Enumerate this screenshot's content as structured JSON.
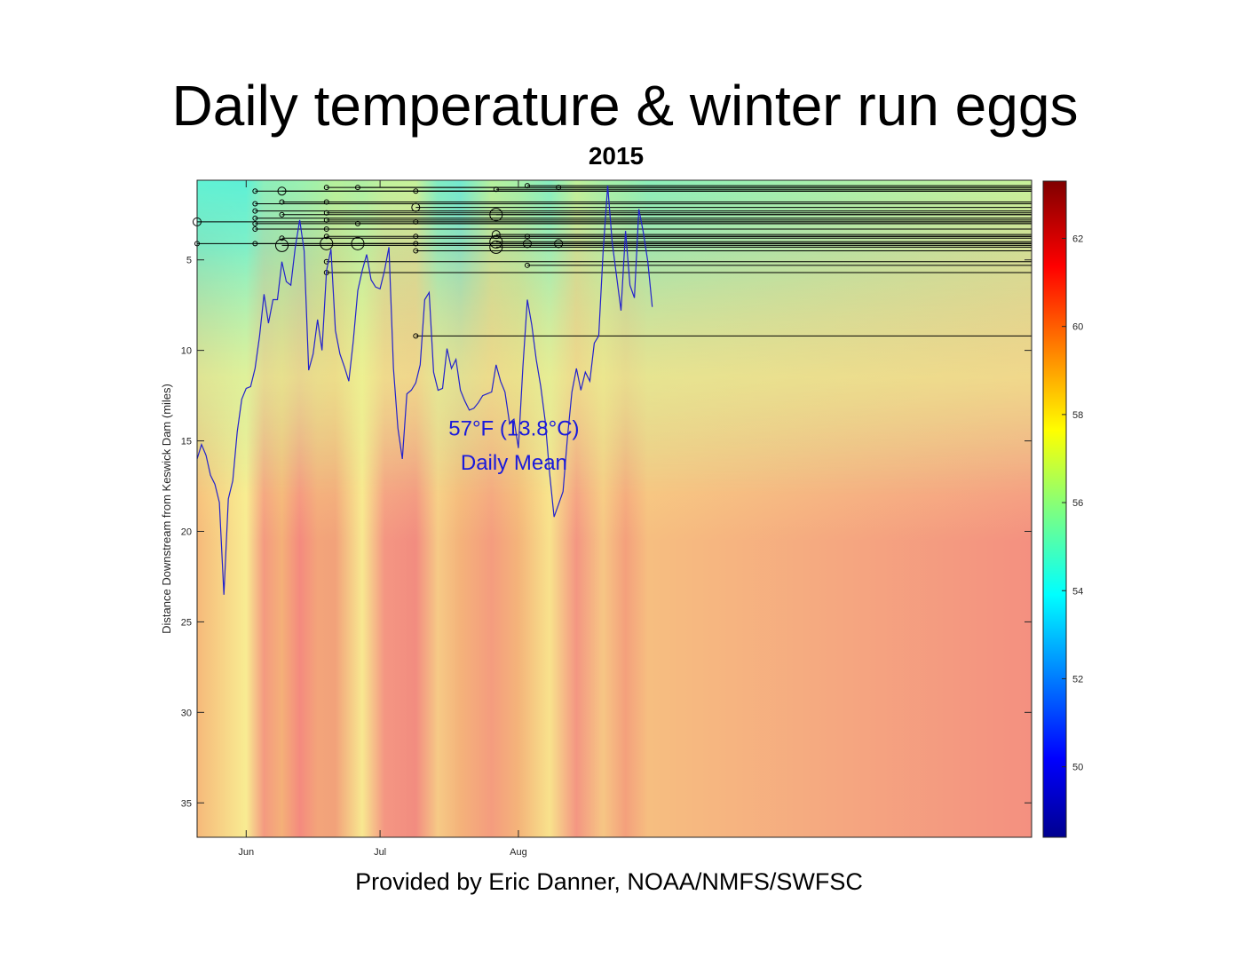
{
  "title": "Daily temperature & winter run eggs",
  "subtitle": "2015",
  "credit": "Provided by Eric Danner, NOAA/NMFS/SWFSC",
  "chart_data": {
    "type": "heatmap",
    "xlabel": "",
    "ylabel": "Distance Downstream from Keswick Dam (miles)",
    "x_range_days": [
      -11,
      176
    ],
    "x_ticks": [
      {
        "day": 0,
        "label": "Jun"
      },
      {
        "day": 30,
        "label": "Jul"
      },
      {
        "day": 61,
        "label": "Aug"
      }
    ],
    "y_range": [
      0.6,
      36.9
    ],
    "y_reversed": true,
    "y_ticks": [
      5,
      10,
      15,
      20,
      25,
      30,
      35
    ],
    "colorbar": {
      "min": 48.4,
      "max": 63.3,
      "ticks": [
        50,
        52,
        54,
        56,
        58,
        60,
        62
      ],
      "colormap": "jet"
    },
    "heatmap_bands": [
      {
        "day": -11,
        "top_color": "#60f2d4",
        "bottom_color": "#f6b97a"
      },
      {
        "day": 0,
        "top_color": "#5df0d6",
        "bottom_color": "#f8ec92"
      },
      {
        "day": 4,
        "top_color": "#8cf0bc",
        "bottom_color": "#f49a80"
      },
      {
        "day": 8,
        "top_color": "#92f0b6",
        "bottom_color": "#f4b078"
      },
      {
        "day": 12,
        "top_color": "#9af2b2",
        "bottom_color": "#f48a7e"
      },
      {
        "day": 16,
        "top_color": "#a4f2a8",
        "bottom_color": "#f3a47a"
      },
      {
        "day": 20,
        "top_color": "#b6f29c",
        "bottom_color": "#f2a27a"
      },
      {
        "day": 26,
        "top_color": "#aef0a4",
        "bottom_color": "#f8e890"
      },
      {
        "day": 31,
        "top_color": "#c2f29c",
        "bottom_color": "#f49682"
      },
      {
        "day": 38,
        "top_color": "#c8f29a",
        "bottom_color": "#f28c80"
      },
      {
        "day": 43,
        "top_color": "#80ecc4",
        "bottom_color": "#f6ca86"
      },
      {
        "day": 48,
        "top_color": "#72ead0",
        "bottom_color": "#f4b27a"
      },
      {
        "day": 55,
        "top_color": "#b6f29e",
        "bottom_color": "#f49c7e"
      },
      {
        "day": 61,
        "top_color": "#a6f0a8",
        "bottom_color": "#f4b47a"
      },
      {
        "day": 68,
        "top_color": "#86eec0",
        "bottom_color": "#f8e28c"
      },
      {
        "day": 74,
        "top_color": "#c0f29a",
        "bottom_color": "#f49682"
      },
      {
        "day": 80,
        "top_color": "#a8f0a8",
        "bottom_color": "#f6c684"
      },
      {
        "day": 85,
        "top_color": "#9cf0ae",
        "bottom_color": "#f4a07c"
      },
      {
        "day": 90,
        "top_color": "#8cefba",
        "bottom_color": "#f6be80"
      },
      {
        "day": 176,
        "top_color": "#c8f29a",
        "bottom_color": "#f49080"
      }
    ],
    "series": [
      {
        "type": "line",
        "color": "#2222cc",
        "x": [
          -11,
          -10,
          -9,
          -8,
          -7,
          -6,
          -5,
          -4,
          -3,
          -2,
          -1,
          0,
          1,
          2,
          3,
          4,
          5,
          6,
          7,
          8,
          9,
          10,
          11,
          12,
          13,
          14,
          15,
          16,
          17,
          18,
          19,
          20,
          21,
          22,
          23,
          24,
          25,
          26,
          27,
          28,
          29,
          30,
          31,
          32,
          33,
          34,
          35,
          36,
          37,
          38,
          39,
          40,
          41,
          42,
          43,
          44,
          45,
          46,
          47,
          48,
          49,
          50,
          51,
          52,
          53,
          54,
          55,
          56,
          57,
          58,
          59,
          60,
          61,
          62,
          63,
          64,
          65,
          66,
          67,
          68,
          69,
          70,
          71,
          72,
          73,
          74,
          75,
          76,
          77,
          78,
          79,
          80,
          81,
          82,
          83,
          84,
          85,
          86,
          87,
          88,
          89,
          90,
          91
        ],
        "y": [
          16.0,
          15.2,
          15.8,
          16.9,
          17.4,
          18.4,
          23.5,
          18.2,
          17.2,
          14.5,
          12.7,
          12.1,
          12.0,
          11.0,
          9.2,
          6.9,
          8.5,
          7.2,
          7.2,
          5.1,
          6.2,
          6.4,
          4.3,
          2.8,
          4.5,
          11.1,
          10.2,
          8.3,
          10.0,
          5.6,
          4.4,
          8.9,
          10.2,
          10.9,
          11.7,
          9.5,
          6.7,
          5.6,
          4.7,
          6.1,
          6.5,
          6.6,
          5.6,
          4.3,
          11.0,
          14.3,
          16.0,
          12.4,
          12.2,
          11.8,
          10.8,
          7.2,
          6.8,
          11.2,
          12.2,
          12.1,
          9.9,
          11.0,
          10.5,
          12.2,
          12.8,
          13.3,
          13.2,
          12.9,
          12.5,
          12.4,
          12.3,
          10.8,
          11.7,
          12.3,
          14.0,
          13.8,
          15.4,
          10.9,
          7.2,
          8.6,
          10.5,
          12.0,
          13.9,
          16.8,
          19.2,
          18.5,
          17.8,
          14.8,
          12.3,
          11.0,
          12.2,
          11.2,
          11.7,
          9.6,
          9.2,
          4.5,
          0.9,
          4.0,
          5.9,
          7.8,
          3.4,
          6.4,
          7.1,
          2.2,
          3.5,
          5.1,
          7.6
        ]
      }
    ],
    "egg_tracks": [
      {
        "start_day": 2,
        "mile": 1.2,
        "size": "small"
      },
      {
        "start_day": 8,
        "mile": 1.2,
        "size": "medium"
      },
      {
        "start_day": 18,
        "mile": 1.0,
        "size": "small"
      },
      {
        "start_day": 25,
        "mile": 1.0,
        "size": "small"
      },
      {
        "start_day": 38,
        "mile": 1.2,
        "size": "small"
      },
      {
        "start_day": 56,
        "mile": 1.1,
        "size": "small"
      },
      {
        "start_day": 63,
        "mile": 0.9,
        "size": "small"
      },
      {
        "start_day": 70,
        "mile": 1.0,
        "size": "small"
      },
      {
        "start_day": 2,
        "mile": 1.9,
        "size": "small"
      },
      {
        "start_day": 8,
        "mile": 1.8,
        "size": "small"
      },
      {
        "start_day": 18,
        "mile": 1.8,
        "size": "small"
      },
      {
        "start_day": 38,
        "mile": 2.1,
        "size": "medium"
      },
      {
        "start_day": 2,
        "mile": 2.3,
        "size": "small"
      },
      {
        "start_day": 18,
        "mile": 2.4,
        "size": "small"
      },
      {
        "start_day": 56,
        "mile": 2.5,
        "size": "large"
      },
      {
        "start_day": 2,
        "mile": 2.7,
        "size": "small"
      },
      {
        "start_day": 8,
        "mile": 2.5,
        "size": "small"
      },
      {
        "start_day": -11,
        "mile": 2.9,
        "size": "medium"
      },
      {
        "start_day": 2,
        "mile": 3.0,
        "size": "small"
      },
      {
        "start_day": 18,
        "mile": 2.8,
        "size": "small"
      },
      {
        "start_day": 25,
        "mile": 3.0,
        "size": "small"
      },
      {
        "start_day": 38,
        "mile": 2.9,
        "size": "small"
      },
      {
        "start_day": 2,
        "mile": 3.3,
        "size": "small"
      },
      {
        "start_day": 18,
        "mile": 3.3,
        "size": "small"
      },
      {
        "start_day": 8,
        "mile": 3.8,
        "size": "small"
      },
      {
        "start_day": 18,
        "mile": 3.7,
        "size": "small"
      },
      {
        "start_day": 38,
        "mile": 3.7,
        "size": "small"
      },
      {
        "start_day": 56,
        "mile": 3.6,
        "size": "medium"
      },
      {
        "start_day": 63,
        "mile": 3.7,
        "size": "small"
      },
      {
        "start_day": -11,
        "mile": 4.1,
        "size": "small"
      },
      {
        "start_day": 2,
        "mile": 4.1,
        "size": "small"
      },
      {
        "start_day": 18,
        "mile": 4.1,
        "size": "large"
      },
      {
        "start_day": 25,
        "mile": 4.1,
        "size": "large"
      },
      {
        "start_day": 38,
        "mile": 4.1,
        "size": "small"
      },
      {
        "start_day": 56,
        "mile": 4.0,
        "size": "large"
      },
      {
        "start_day": 63,
        "mile": 4.1,
        "size": "medium"
      },
      {
        "start_day": 70,
        "mile": 4.1,
        "size": "medium"
      },
      {
        "start_day": 8,
        "mile": 4.2,
        "size": "large"
      },
      {
        "start_day": 56,
        "mile": 4.3,
        "size": "large"
      },
      {
        "start_day": 38,
        "mile": 4.5,
        "size": "small"
      },
      {
        "start_day": 18,
        "mile": 5.1,
        "size": "small"
      },
      {
        "start_day": 63,
        "mile": 5.3,
        "size": "small"
      },
      {
        "start_day": 18,
        "mile": 5.7,
        "size": "small"
      },
      {
        "start_day": 38,
        "mile": 9.2,
        "size": "small"
      }
    ],
    "annotations": [
      {
        "text": "57°F (13.8°C)",
        "day": 60,
        "mile": 14.7
      },
      {
        "text": "Daily Mean",
        "day": 60,
        "mile": 16.6
      }
    ],
    "grid": false
  },
  "colors": {
    "series_line": "#2222cc",
    "annotation_text": "#1a1adb",
    "egg_marker": "#000000"
  }
}
